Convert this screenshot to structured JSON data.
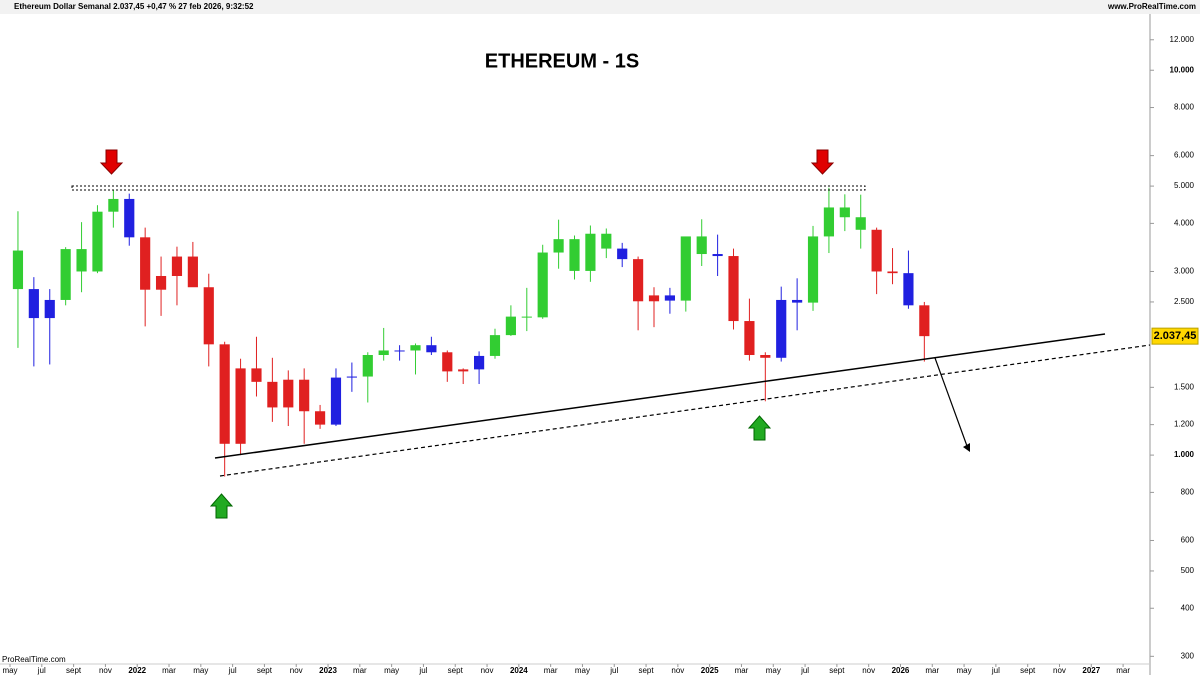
{
  "chart_data": {
    "type": "candlestick",
    "header": "Ethereum Dollar Semanal 2.037,45 +0,47 % 27 feb 2026, 9:32:52",
    "source": "www.ProRealTime.com",
    "footer": "ProRealTime.com",
    "title": "ETHEREUM - 1S",
    "log_scale": true,
    "ylim": [
      290,
      14000
    ],
    "yticks": [
      {
        "value": 12000,
        "label": "12.000"
      },
      {
        "value": 10000,
        "label": "10.000"
      },
      {
        "value": 8000,
        "label": "8.000"
      },
      {
        "value": 6000,
        "label": "6.000"
      },
      {
        "value": 5000,
        "label": "5.000"
      },
      {
        "value": 4000,
        "label": "4.000"
      },
      {
        "value": 3000,
        "label": "3.000"
      },
      {
        "value": 2500,
        "label": "2.500"
      },
      {
        "value": 1500,
        "label": "1.500"
      },
      {
        "value": 1200,
        "label": "1.200"
      },
      {
        "value": 1000,
        "label": "1.000"
      },
      800,
      600,
      500,
      400,
      300
    ],
    "xlim": [
      "2021-05",
      "2027-04"
    ],
    "xticks": [
      {
        "value": "2021-05",
        "label": "may"
      },
      {
        "value": "2021-07",
        "label": "jul"
      },
      {
        "value": "2021-09",
        "label": "sept"
      },
      {
        "value": "2021-11",
        "label": "nov"
      },
      {
        "value": "2022-01",
        "label": "2022"
      },
      {
        "value": "2022-03",
        "label": "mar"
      },
      {
        "value": "2022-05",
        "label": "may"
      },
      {
        "value": "2022-07",
        "label": "jul"
      },
      {
        "value": "2022-09",
        "label": "sept"
      },
      {
        "value": "2022-11",
        "label": "nov"
      },
      {
        "value": "2023-01",
        "label": "2023"
      },
      {
        "value": "2023-03",
        "label": "mar"
      },
      {
        "value": "2023-05",
        "label": "may"
      },
      {
        "value": "2023-07",
        "label": "jul"
      },
      {
        "value": "2023-09",
        "label": "sept"
      },
      {
        "value": "2023-11",
        "label": "nov"
      },
      {
        "value": "2024-01",
        "label": "2024"
      },
      {
        "value": "2024-03",
        "label": "mar"
      },
      {
        "value": "2024-05",
        "label": "may"
      },
      {
        "value": "2024-07",
        "label": "jul"
      },
      {
        "value": "2024-09",
        "label": "sept"
      },
      {
        "value": "2024-11",
        "label": "nov"
      },
      {
        "value": "2025-01",
        "label": "2025"
      },
      {
        "value": "2025-03",
        "label": "mar"
      },
      {
        "value": "2025-05",
        "label": "may"
      },
      {
        "value": "2025-07",
        "label": "jul"
      },
      {
        "value": "2025-09",
        "label": "sept"
      },
      {
        "value": "2025-11",
        "label": "nov"
      },
      {
        "value": "2026-01",
        "label": "2026"
      },
      {
        "value": "2026-03",
        "label": "mar"
      },
      {
        "value": "2026-05",
        "label": "may"
      },
      {
        "value": "2026-07",
        "label": "jul"
      },
      {
        "value": "2026-09",
        "label": "sept"
      },
      {
        "value": "2026-11",
        "label": "nov"
      },
      {
        "value": "2027-01",
        "label": "2027"
      },
      {
        "value": "2027-03",
        "label": "mar"
      }
    ],
    "x": [
      "2021-05",
      "2021-06",
      "2021-07",
      "2021-08",
      "2021-09",
      "2021-10",
      "2021-11",
      "2021-12",
      "2022-01",
      "2022-02",
      "2022-03",
      "2022-04",
      "2022-05",
      "2022-06",
      "2022-07",
      "2022-08",
      "2022-09",
      "2022-10",
      "2022-11",
      "2022-12",
      "2023-01",
      "2023-02",
      "2023-03",
      "2023-04",
      "2023-05",
      "2023-06",
      "2023-07",
      "2023-08",
      "2023-09",
      "2023-10",
      "2023-11",
      "2023-12",
      "2024-01",
      "2024-02",
      "2024-03",
      "2024-04",
      "2024-05",
      "2024-06",
      "2024-07",
      "2024-08",
      "2024-09",
      "2024-10",
      "2024-11",
      "2024-12",
      "2025-01",
      "2025-02",
      "2025-03",
      "2025-04",
      "2025-05",
      "2025-06",
      "2025-07",
      "2025-08",
      "2025-09",
      "2025-10",
      "2025-11",
      "2025-12",
      "2026-01",
      "2026-02"
    ],
    "open": [
      3400,
      2700,
      2270,
      2530,
      3430,
      3000,
      4290,
      4630,
      3680,
      2690,
      2920,
      3280,
      2730,
      1940,
      1070,
      1680,
      1550,
      1330,
      1570,
      1300,
      1200,
      1590,
      1600,
      1820,
      1870,
      1870,
      1930,
      1850,
      1650,
      1670,
      1810,
      2050,
      2290,
      2280,
      3360,
      3640,
      3010,
      3760,
      3440,
      3230,
      2510,
      2600,
      2520,
      3700,
      3330,
      3290,
      2230,
      1820,
      1790,
      2530,
      2490,
      3700,
      4400,
      4150,
      3850,
      3000,
      2970,
      2450
    ],
    "high": [
      4300,
      2900,
      2700,
      3470,
      4030,
      4460,
      4870,
      4780,
      3900,
      3280,
      3480,
      3580,
      2960,
      1970,
      1780,
      2030,
      1790,
      1660,
      1680,
      1350,
      1680,
      1740,
      1850,
      2140,
      1930,
      1950,
      2030,
      1870,
      1680,
      1860,
      2130,
      2450,
      2720,
      3520,
      4090,
      3720,
      3950,
      3880,
      3560,
      3280,
      2730,
      2720,
      3680,
      4100,
      3740,
      3440,
      2550,
      1850,
      2740,
      2880,
      3940,
      4950,
      4760,
      4750,
      3900,
      3450,
      3400,
      2500
    ],
    "low": [
      1900,
      1700,
      1720,
      2450,
      2650,
      2970,
      3900,
      3500,
      2160,
      2300,
      2450,
      2770,
      1700,
      880,
      1000,
      1420,
      1220,
      1190,
      1070,
      1170,
      1190,
      1460,
      1370,
      1760,
      1760,
      1620,
      1820,
      1550,
      1530,
      1530,
      1780,
      2040,
      2100,
      2260,
      3050,
      2860,
      2820,
      3250,
      3080,
      2110,
      2150,
      2330,
      2360,
      3100,
      2920,
      2120,
      1760,
      1380,
      1750,
      2110,
      2370,
      3350,
      3820,
      3440,
      2620,
      2780,
      2400,
      1750
    ],
    "close": [
      2700,
      2270,
      2530,
      3430,
      3000,
      4290,
      4630,
      3680,
      2690,
      2920,
      3280,
      2730,
      1940,
      1070,
      1680,
      1550,
      1330,
      1570,
      1300,
      1200,
      1590,
      1600,
      1820,
      1870,
      1870,
      1930,
      1850,
      1650,
      1670,
      1810,
      2050,
      2290,
      2280,
      3360,
      3640,
      3010,
      3760,
      3440,
      3230,
      2510,
      2600,
      2520,
      3700,
      3330,
      3290,
      2230,
      1820,
      1790,
      2530,
      2490,
      3700,
      4400,
      4150,
      3850,
      3000,
      2970,
      2450,
      2037.45
    ],
    "colors": [
      "#32cd32",
      "#2020e0",
      "#2020e0",
      "#32cd32",
      "#32cd32",
      "#32cd32",
      "#32cd32",
      "#2020e0",
      "#e02020",
      "#e02020",
      "#e02020",
      "#e02020",
      "#e02020",
      "#e02020",
      "#e02020",
      "#e02020",
      "#e02020",
      "#e02020",
      "#e02020",
      "#e02020",
      "#2020e0",
      "#2020e0",
      "#32cd32",
      "#32cd32",
      "#2020e0",
      "#32cd32",
      "#2020e0",
      "#e02020",
      "#e02020",
      "#2020e0",
      "#32cd32",
      "#32cd32",
      "#32cd32",
      "#32cd32",
      "#32cd32",
      "#32cd32",
      "#32cd32",
      "#32cd32",
      "#2020e0",
      "#e02020",
      "#e02020",
      "#2020e0",
      "#32cd32",
      "#32cd32",
      "#2020e0",
      "#e02020",
      "#e02020",
      "#e02020",
      "#2020e0",
      "#2020e0",
      "#32cd32",
      "#32cd32",
      "#32cd32",
      "#32cd32",
      "#e02020",
      "#e02020",
      "#2020e0",
      "#e02020"
    ],
    "last_price": {
      "value": 2037.45,
      "label": "2.037,45"
    },
    "price_label_color": "#ffd700"
  }
}
